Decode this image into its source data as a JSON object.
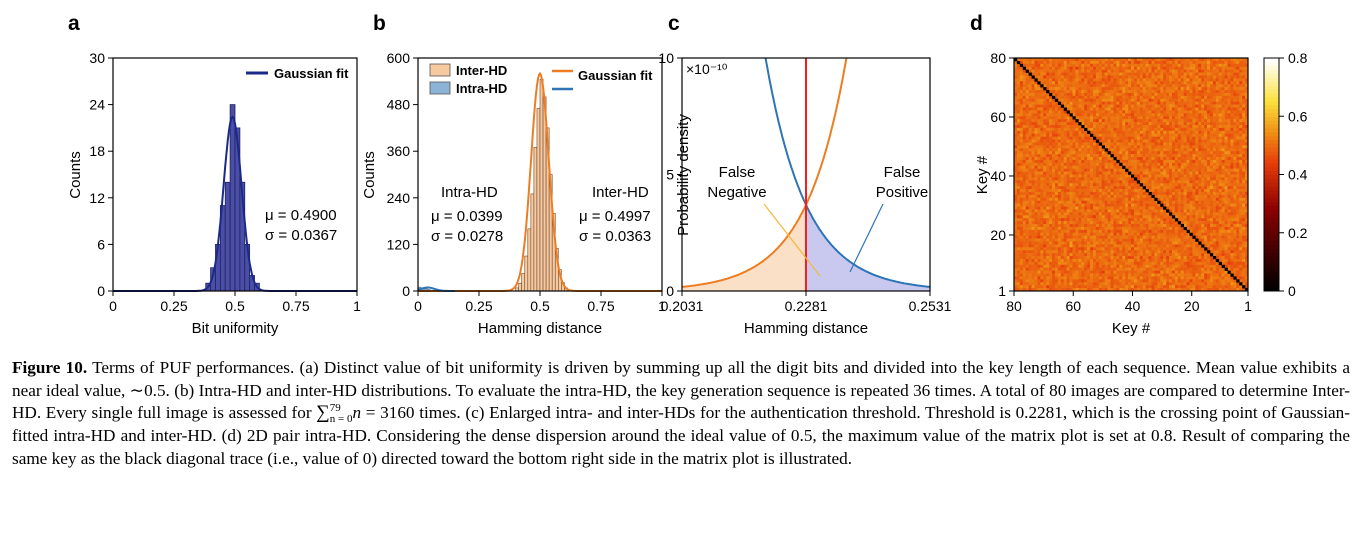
{
  "figure": {
    "panels": [
      {
        "letter": "a"
      },
      {
        "letter": "b"
      },
      {
        "letter": "c"
      },
      {
        "letter": "d"
      }
    ]
  },
  "chart_data": [
    {
      "panel": "a",
      "type": "bar",
      "xlabel": "Bit uniformity",
      "ylabel": "Counts",
      "xlim": [
        0,
        1
      ],
      "ylim": [
        0,
        30
      ],
      "xticks": [
        "0",
        "0.25",
        "0.5",
        "0.75",
        "1"
      ],
      "yticks": [
        "0",
        "6",
        "12",
        "18",
        "24",
        "30"
      ],
      "bin_width": 0.02,
      "bin_starts": [
        0.38,
        0.4,
        0.42,
        0.44,
        0.46,
        0.48,
        0.5,
        0.52,
        0.54,
        0.56,
        0.58
      ],
      "values": [
        1,
        3,
        6,
        11,
        14,
        24,
        21,
        14,
        6,
        2,
        1
      ],
      "fit": {
        "name": "Gaussian fit",
        "mu": 0.49,
        "sigma": 0.0367,
        "peak": 22.4,
        "color": "#1b2a8a"
      },
      "bar_color": "#4a4ea6",
      "annotations": [
        "μ = 0.4900",
        "σ = 0.0367"
      ]
    },
    {
      "panel": "b",
      "type": "bar",
      "xlabel": "Hamming distance",
      "ylabel": "Counts",
      "xlim": [
        0,
        1
      ],
      "ylim": [
        0,
        600
      ],
      "xticks": [
        "0",
        "0.25",
        "0.5",
        "0.75",
        "1"
      ],
      "yticks": [
        "0",
        "120",
        "240",
        "360",
        "480",
        "600"
      ],
      "series": [
        {
          "name": "Inter-HD",
          "bin_width": 0.0125,
          "bin_starts": [
            0.4,
            0.4125,
            0.425,
            0.4375,
            0.45,
            0.4625,
            0.475,
            0.4875,
            0.5,
            0.5125,
            0.525,
            0.5375,
            0.55,
            0.5625,
            0.575,
            0.5875,
            0.6
          ],
          "values": [
            8,
            20,
            45,
            90,
            160,
            250,
            370,
            470,
            545,
            500,
            420,
            300,
            200,
            110,
            55,
            22,
            8
          ],
          "color": "#f7c9a0"
        },
        {
          "name": "Intra-HD",
          "bin_width": 0.0125,
          "bin_starts": [
            0.0,
            0.0125,
            0.025,
            0.0375,
            0.05,
            0.0625
          ],
          "values": [
            10,
            8,
            6,
            4,
            2,
            1
          ],
          "color": "#8cb4d9"
        }
      ],
      "fit": {
        "name": "Gaussian fit",
        "color_inter": "#ee7d22",
        "color_intra": "#2f74b5",
        "mu": 0.4997,
        "sigma": 0.0363,
        "peak": 560
      },
      "legend": [
        "Inter-HD",
        "Intra-HD",
        "Gaussian fit"
      ],
      "annotations": {
        "intra_title": "Intra-HD",
        "intra_mu": "μ = 0.0399",
        "intra_sigma": "σ = 0.0278",
        "inter_title": "Inter-HD",
        "inter_mu": "μ = 0.4997",
        "inter_sigma": "σ = 0.0363"
      }
    },
    {
      "panel": "c",
      "type": "line",
      "xlabel": "Hamming distance",
      "ylabel": "Probability density",
      "xlim": [
        0.2031,
        0.2531
      ],
      "ylim": [
        0,
        10
      ],
      "y_exponent": "×10⁻¹⁰",
      "xticks": [
        "0.2031",
        "0.2281",
        "0.2531"
      ],
      "yticks": [
        "0",
        "5",
        "10"
      ],
      "threshold": 0.2281,
      "threshold_color": "#ff1a1a",
      "crossing_density": 3.7,
      "series": [
        {
          "name": "Inter-HD",
          "color": "#ee7d22",
          "fill": "#fae0c6",
          "growth_per_unit": 122
        },
        {
          "name": "Intra-HD",
          "color": "#2f74b5",
          "fill": "#c9c8ef",
          "decay_per_unit": 122
        }
      ],
      "annotations": {
        "fn_line1": "False",
        "fn_line2": "Negative",
        "fp_line1": "False",
        "fp_line2": "Positive"
      }
    },
    {
      "panel": "d",
      "type": "heatmap",
      "xlabel": "Key #",
      "ylabel": "Key #",
      "size": 80,
      "xticks": [
        "80",
        "60",
        "40",
        "20",
        "1"
      ],
      "yticks": [
        "1",
        "20",
        "40",
        "60",
        "80"
      ],
      "value_range": [
        0,
        0.8
      ],
      "typical_value": 0.5,
      "diagonal_value": 0,
      "colorbar_ticks": [
        "0",
        "0.2",
        "0.4",
        "0.6",
        "0.8"
      ]
    }
  ],
  "caption": {
    "label": "Figure 10.",
    "part1": " Terms of PUF performances. (a) Distinct value of bit uniformity is driven by summing up all the digit bits and divided into the key length of each sequence. Mean value exhibits a near ideal value, ∼0.5. (b) Intra-HD and inter-HD distributions. To evaluate the intra-HD, the key generation sequence is repeated 36 times. A total of 80 images are compared to determine Inter-HD. Every single full image is assessed for ",
    "sum_symbol": "∑",
    "sum_upper": "79",
    "sum_lower": "n = 0",
    "sum_var": "n",
    "part2": " = 3160 times. (c) Enlarged intra- and inter-HDs for the authentication threshold. Threshold is 0.2281, which is the crossing point of Gaussian-fitted intra-HD and inter-HD. (d) 2D pair intra-HD. Considering the dense dispersion around the ideal value of 0.5, the maximum value of the matrix plot is set at 0.8. Result of comparing the same key as the black diagonal trace (i.e., value of 0) directed toward the bottom right side in the matrix plot is illustrated."
  }
}
